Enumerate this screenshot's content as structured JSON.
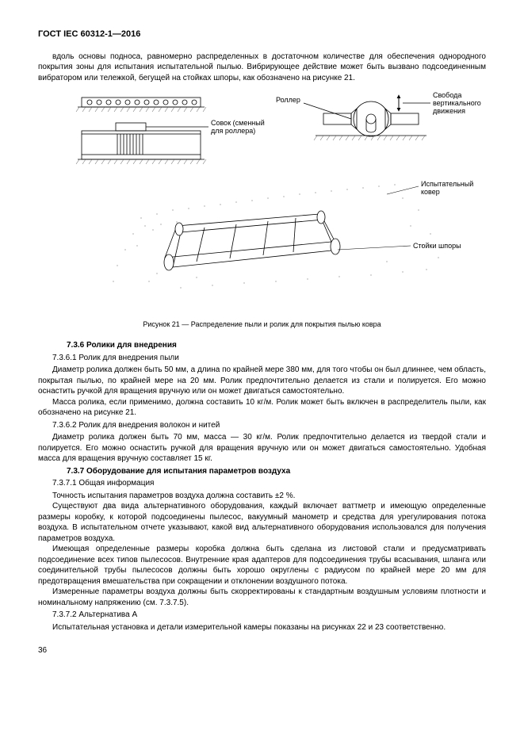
{
  "header": "ГОСТ  IEC  60312-1—2016",
  "p1": "вдоль основы подноса, равномерно распределенных в достаточном количестве для обеспечения однородного покрытия зоны для испытания испытательной пылью. Вибрирующее действие может быть вызвано подсоединенным вибратором или тележкой, бегущей на стойках шпоры, как обозначено на рисунке 21.",
  "fig": {
    "label_roller": "Роллер",
    "label_scoop": "Совок (сменный для роллера)",
    "label_freedom": "Свобода вертикального движения",
    "label_carpet": "Испытательный ковер",
    "label_spur": "Стойки шпоры",
    "caption": "Рисунок 21 — Распределение пыли и ролик для покрытия пылью ковра"
  },
  "s736": "7.3.6  Ролики для внедрения",
  "s7361": "7.3.6.1  Ролик для внедрения пыли",
  "p2": "Диаметр ролика должен быть 50 мм, а длина по крайней мере 380 мм, для того чтобы он был длиннее, чем область, покрытая пылью, по крайней мере на 20 мм. Ролик предпочтительно делается из стали и полируется. Его можно оснастить ручкой для вращения вручную или он может двигаться самостоятельно.",
  "p3": "Масса ролика, если применимо, должна составить 10 кг/м. Ролик может быть включен в распределитель пыли, как обозначено на рисунке 21.",
  "s7362": "7.3.6.2  Ролик для внедрения волокон и нитей",
  "p4": "Диаметр ролика должен быть 70 мм, масса — 30 кг/м. Ролик предпочтительно делается из твердой стали и полируется. Его можно оснастить ручкой для вращения вручную или он может двигаться самостоятельно. Удобная масса для вращения вручную составляет 15 кг.",
  "s737": "7.3.7  Оборудование для испытания параметров воздуха",
  "s7371": "7.3.7.1  Общая информация",
  "p5": "Точность испытания параметров воздуха должна составить ±2 %.",
  "p6": "Существуют два вида альтернативного оборудования, каждый включает ваттметр и имеющую определенные размеры коробку, к которой подсоединены пылесос, вакуумный манометр и средства для урегулирования потока воздуха. В испытательном отчете указывают, какой вид альтернативного оборудования использовался для получения параметров воздуха.",
  "p7": "Имеющая определенные размеры коробка должна быть сделана из листовой стали и предусматривать подсоединение всех типов пылесосов. Внутренние края адаптеров для подсоединения трубы всасывания, шланга или соединительной трубы пылесосов должны быть хорошо округлены с радиусом по крайней мере 20 мм для предотвращения вмешательства при сокращении и отклонении воздушного потока.",
  "p8": "Измеренные параметры воздуха должны быть скорректированы к стандартным воздушным условиям плотности и номинальному напряжению (см. 7.3.7.5).",
  "s7372": "7.3.7.2  Альтернатива А",
  "p9": "Испытательная установка и детали измерительной камеры показаны на рисунках 22 и 23 соответственно.",
  "pagenum": "36",
  "colors": {
    "text": "#000000",
    "bg": "#ffffff",
    "line": "#000000",
    "hatch": "#555555"
  }
}
